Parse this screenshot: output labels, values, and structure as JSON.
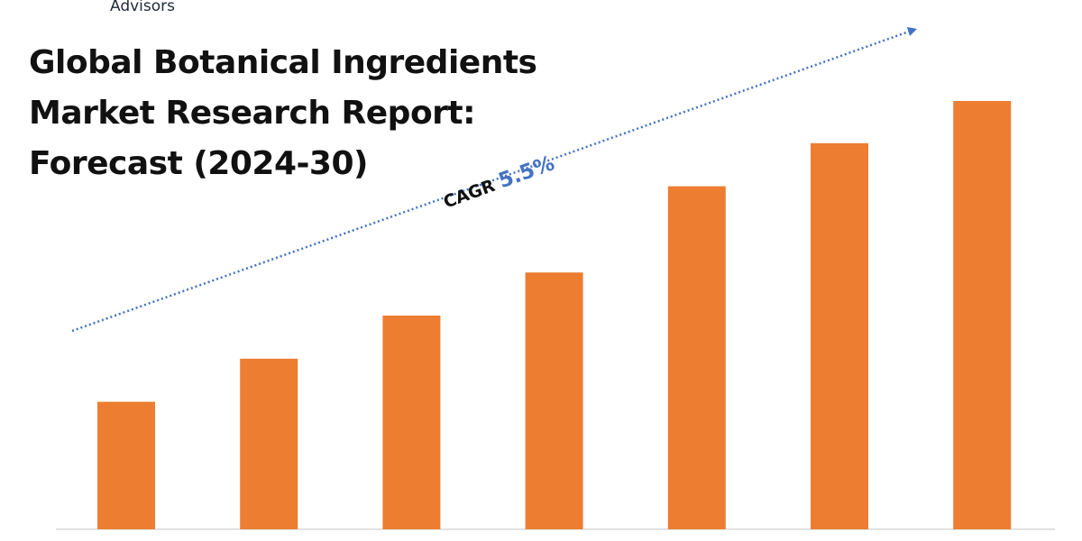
{
  "header": {
    "brand": "Advisors",
    "title_lines": [
      "Global Botanical Ingredients",
      "Market Research Report:",
      "Forecast (2024-30)"
    ]
  },
  "cagr": {
    "label": "CAGR",
    "value": "5.5%",
    "value_color": "#4472c4",
    "arrow_color": "#4472c4"
  },
  "chart_data": {
    "type": "bar",
    "categories": [
      "",
      "",
      "",
      "",
      "",
      "",
      ""
    ],
    "values": [
      142,
      190,
      238,
      286,
      382,
      430,
      477
    ],
    "bar_color": "#ed7d31",
    "xlabel": "",
    "ylabel": "",
    "ylim": [
      0,
      480
    ],
    "grid": false,
    "legend": "none"
  }
}
